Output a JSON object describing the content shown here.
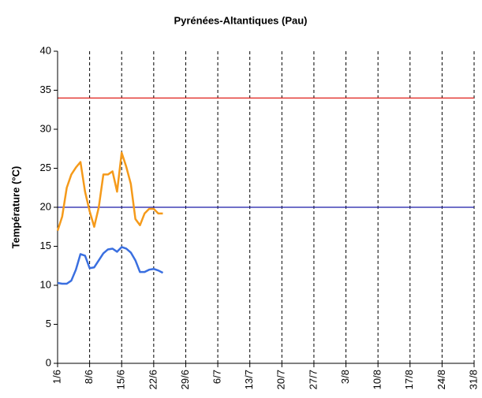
{
  "chart_data": {
    "type": "line",
    "title": "Pyrénées-Altantiques (Pau)",
    "y_label": "Température (°C)",
    "categories": [
      "1/6",
      null,
      null,
      null,
      null,
      null,
      null,
      "8/6",
      null,
      null,
      null,
      null,
      null,
      null,
      "15/6",
      null,
      null,
      null,
      null,
      null,
      null,
      "22/6",
      null,
      null,
      null,
      null,
      null,
      null,
      "29/6",
      null,
      null,
      null,
      null,
      null,
      null,
      "6/7",
      null,
      null,
      null,
      null,
      null,
      null,
      "13/7",
      null,
      null,
      null,
      null,
      null,
      null,
      "20/7",
      null,
      null,
      null,
      null,
      null,
      null,
      "27/7",
      null,
      null,
      null,
      null,
      null,
      null,
      "3/8",
      null,
      null,
      null,
      null,
      null,
      null,
      "10/8",
      null,
      null,
      null,
      null,
      null,
      null,
      "17/8",
      null,
      null,
      null,
      null,
      null,
      null,
      "24/8",
      null,
      null,
      null,
      null,
      null,
      null,
      "31/8"
    ],
    "series": [
      {
        "color": "#f59a1a",
        "values": [
          17,
          18.8,
          22.5,
          24.2,
          25.1,
          25.8,
          22,
          19.5,
          17.5,
          20,
          24.2,
          24.2,
          24.6,
          22,
          27,
          25.2,
          23,
          18.5,
          17.7,
          19.2,
          19.8,
          19.8,
          19.2,
          19.2,
          null,
          null,
          null,
          null,
          null,
          null,
          null,
          null,
          null,
          null,
          null,
          null,
          null,
          null,
          null,
          null,
          null,
          null,
          null,
          null,
          null,
          null,
          null,
          null,
          null,
          null,
          null,
          null,
          null,
          null,
          null,
          null,
          null,
          null,
          null,
          null,
          null,
          null,
          null,
          null,
          null,
          null,
          null,
          null,
          null,
          null,
          null,
          null,
          null,
          null,
          null,
          null,
          null,
          null,
          null,
          null,
          null,
          null,
          null,
          null,
          null,
          null,
          null,
          null,
          null,
          null,
          null,
          null
        ]
      },
      {
        "color": "#3a6fe0",
        "values": [
          10.3,
          10.2,
          10.2,
          10.6,
          12,
          14,
          13.8,
          12.2,
          12.3,
          13.2,
          14.1,
          14.6,
          14.7,
          14.3,
          14.9,
          14.7,
          14.2,
          13.2,
          11.7,
          11.7,
          12,
          12.1,
          11.9,
          11.6,
          null,
          null,
          null,
          null,
          null,
          null,
          null,
          null,
          null,
          null,
          null,
          null,
          null,
          null,
          null,
          null,
          null,
          null,
          null,
          null,
          null,
          null,
          null,
          null,
          null,
          null,
          null,
          null,
          null,
          null,
          null,
          null,
          null,
          null,
          null,
          null,
          null,
          null,
          null,
          null,
          null,
          null,
          null,
          null,
          null,
          null,
          null,
          null,
          null,
          null,
          null,
          null,
          null,
          null,
          null,
          null,
          null,
          null,
          null,
          null,
          null,
          null,
          null,
          null,
          null,
          null,
          null,
          null
        ]
      }
    ],
    "hlines": [
      {
        "value": 34,
        "color": "#e0201b"
      },
      {
        "value": 20,
        "color": "#1a1aa8"
      }
    ],
    "ylim": [
      0,
      40
    ],
    "yticks": [
      0,
      5,
      10,
      15,
      20,
      25,
      30,
      35,
      40
    ],
    "x_grid": "dashed"
  }
}
